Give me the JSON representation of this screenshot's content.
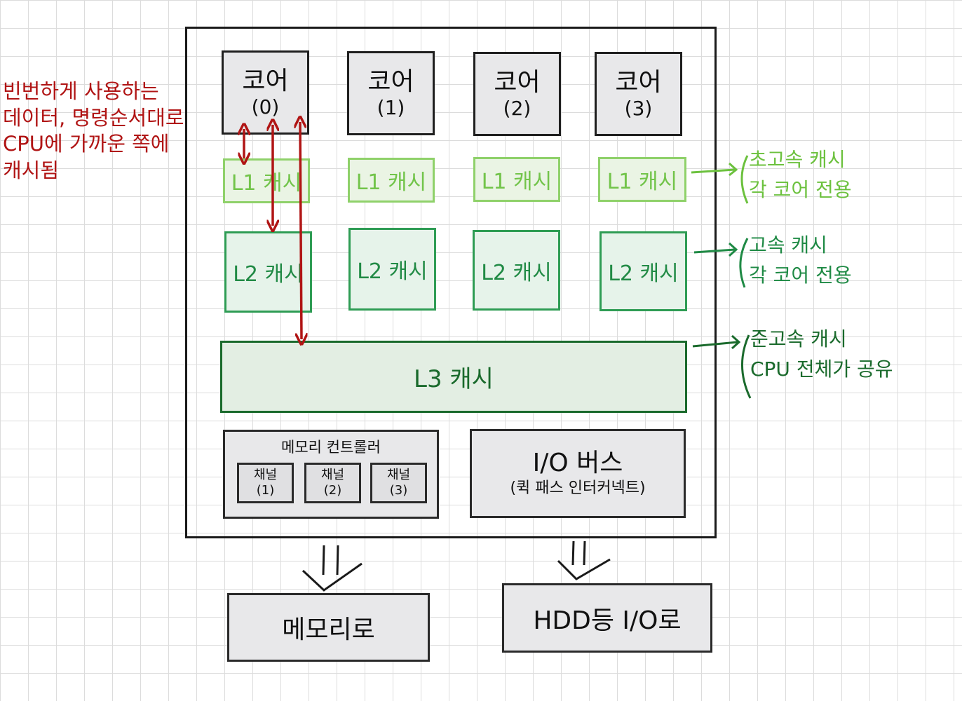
{
  "cores": [
    {
      "label": "코어",
      "index": "(0)"
    },
    {
      "label": "코어",
      "index": "(1)"
    },
    {
      "label": "코어",
      "index": "(2)"
    },
    {
      "label": "코어",
      "index": "(3)"
    }
  ],
  "l1_label": "L1 캐시",
  "l2_label": "L2 캐시",
  "l3_label": "L3 캐시",
  "memory_controller": {
    "title": "메모리 컨트롤러",
    "channels": [
      {
        "label": "채널",
        "index": "(1)"
      },
      {
        "label": "채널",
        "index": "(2)"
      },
      {
        "label": "채널",
        "index": "(3)"
      }
    ]
  },
  "io_bus": {
    "title": "I/O 버스",
    "subtitle": "(퀵 패스 인터커넥트)"
  },
  "memory_box": "메모리로",
  "hdd_box": "HDD등 I/O로",
  "left_note": "빈번하게 사용하는\n데이터, 명령순서대로\nCPU에 가까운 쪽에\n캐시됨",
  "l1_note": "초고속 캐시\n각 코어 전용",
  "l2_note": "고속 캐시\n각 코어 전용",
  "l3_note": "준고속 캐시\nCPU 전체가 공유",
  "colors": {
    "red_annotation": "#b01414",
    "l1_green": "#72c44a",
    "l2_green": "#218a45",
    "l3_green": "#1a6a2c",
    "box_gray": "#e8e8ea"
  }
}
